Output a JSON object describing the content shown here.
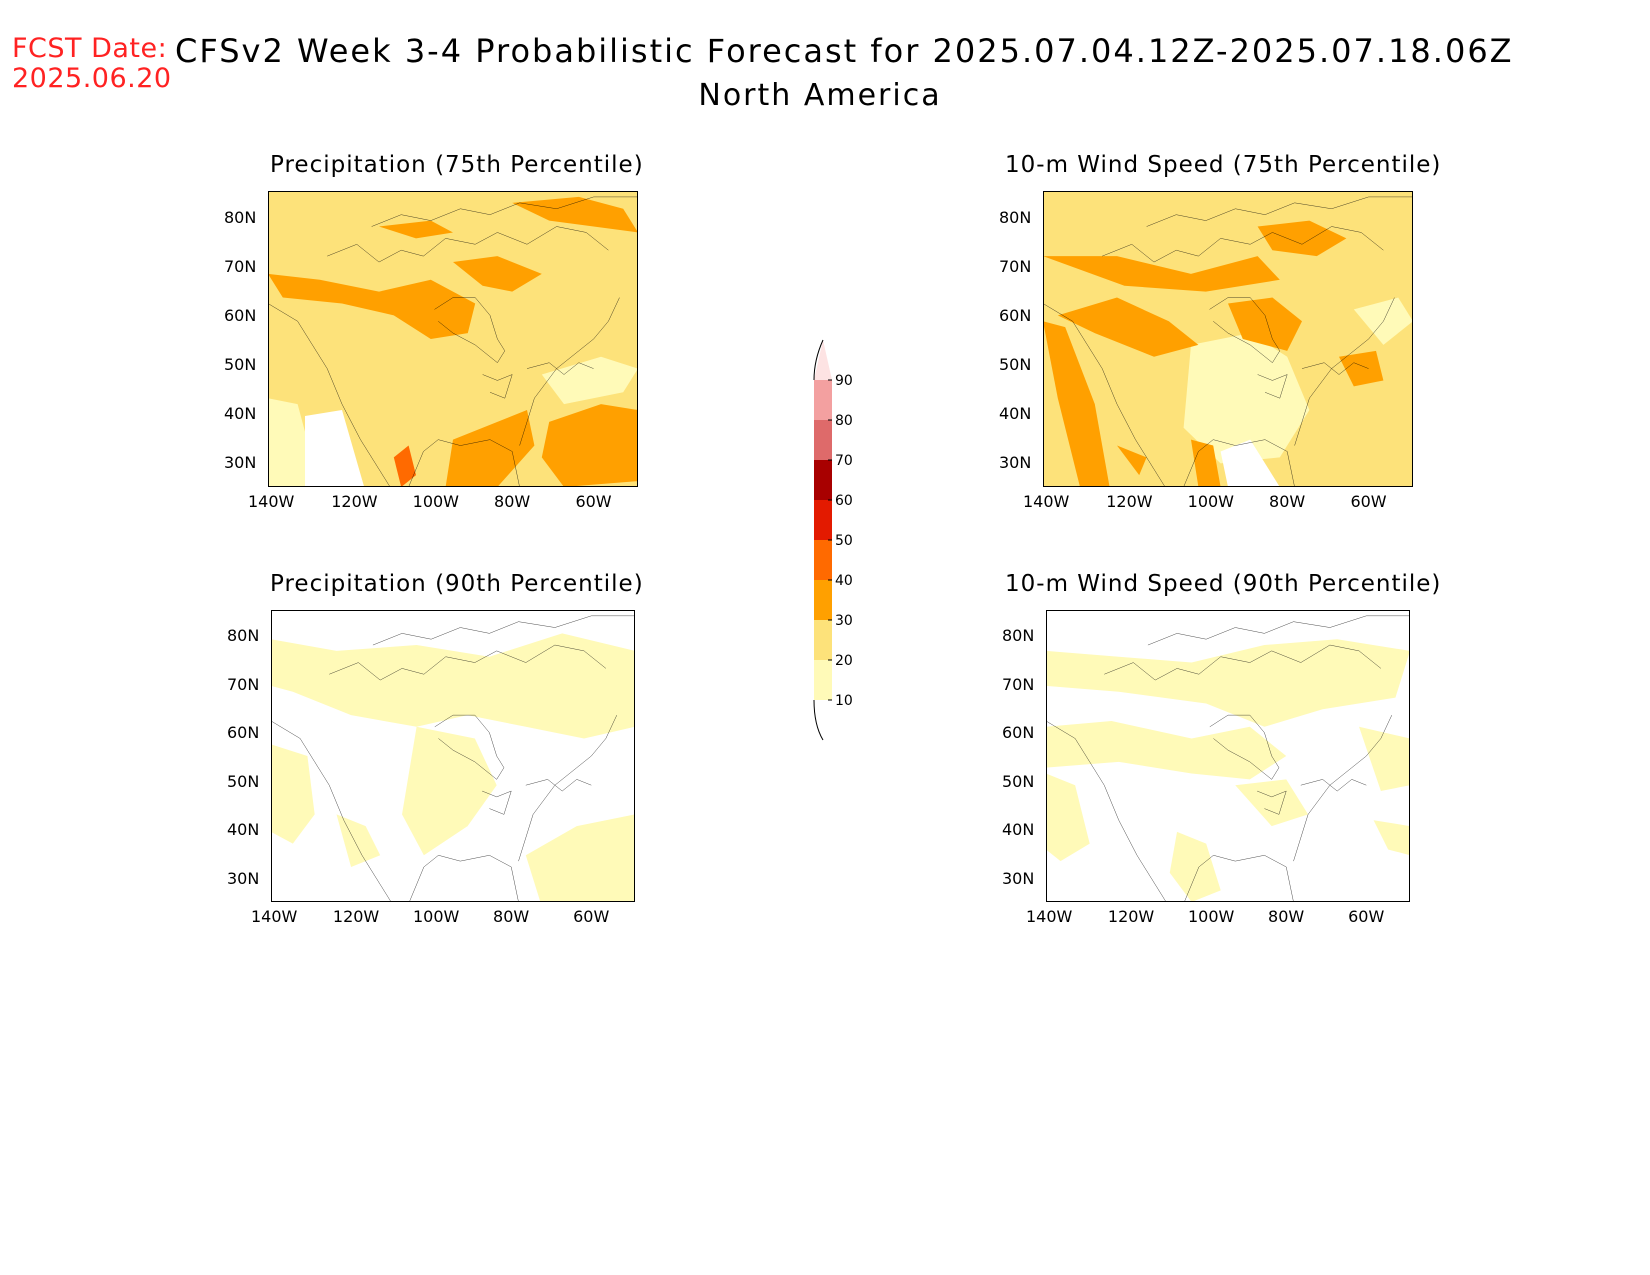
{
  "header": {
    "fcst_label": "FCST Date:",
    "fcst_date": "2025.06.20",
    "title": "CFSv2 Week 3-4 Probabilistic Forecast for 2025.07.04.12Z-2025.07.18.06Z",
    "region": "North America"
  },
  "panels": [
    {
      "title": "Precipitation (75th Percentile)"
    },
    {
      "title": "10-m Wind Speed (75th Percentile)"
    },
    {
      "title": "Precipitation (90th Percentile)"
    },
    {
      "title": "10-m Wind Speed (90th Percentile)"
    }
  ],
  "axes": {
    "lat_labels": [
      "80N",
      "70N",
      "60N",
      "50N",
      "40N",
      "30N"
    ],
    "lon_labels": [
      "140W",
      "120W",
      "100W",
      "80W",
      "60W"
    ]
  },
  "colorbar": {
    "levels": [
      "90",
      "80",
      "70",
      "60",
      "50",
      "40",
      "30",
      "20",
      "10"
    ],
    "colors": [
      "#fde3e3",
      "#f3a0a0",
      "#de6a6a",
      "#a80000",
      "#e31a00",
      "#ff6a00",
      "#ffa000",
      "#fde27a",
      "#fffab8"
    ]
  }
}
